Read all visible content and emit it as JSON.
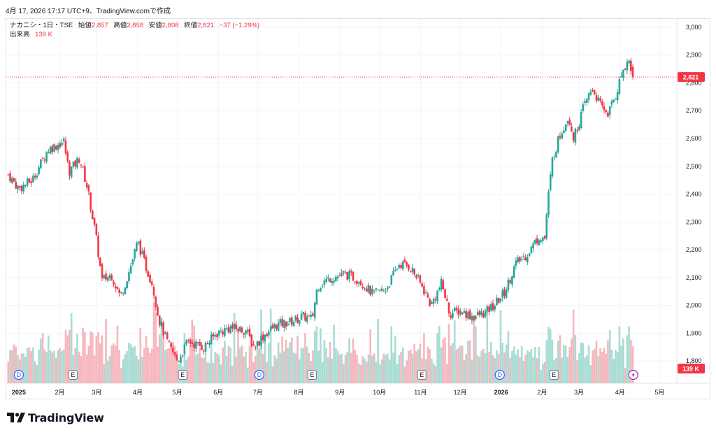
{
  "caption": "4月 17, 2026 17:17 UTC+9、TradingView.comで作成",
  "legend": {
    "symbol": "ナカニシ・1日・TSE",
    "open_label": "始値",
    "open_value": "2,857",
    "high_label": "高値",
    "high_value": "2,858",
    "low_label": "安値",
    "low_value": "2,808",
    "close_label": "終値",
    "close_value": "2,821",
    "change": "−37 (−1.29%)",
    "volume_label": "出来高",
    "volume_value": "139 K"
  },
  "price_badge": "2,821",
  "volume_badge": "139 K",
  "logo_text": "TradingView",
  "colors": {
    "up": "#26a69a",
    "down": "#f23645",
    "up_volume": "#a8dcd4",
    "down_volume": "#f5b7bd",
    "grid": "#f0f3fa",
    "event_E": "#787b86",
    "event_D": "#2962ff",
    "event_flash": "#9c27b0"
  },
  "chart_data": {
    "type": "candlestick",
    "title": "ナカニシ・1日・TSE",
    "ylim": [
      1720,
      3030
    ],
    "y_ticks": [
      1800,
      1900,
      2000,
      2100,
      2200,
      2300,
      2400,
      2500,
      2600,
      2700,
      2800,
      2900,
      3000
    ],
    "y_tick_labels": [
      "1,800",
      "1,900",
      "2,000",
      "2,100",
      "2,200",
      "2,300",
      "2,400",
      "2,500",
      "2,600",
      "2,700",
      "2,800",
      "2,900",
      "3,000"
    ],
    "x_range_days": [
      -10,
      498
    ],
    "x_ticks": [
      {
        "label": "2025",
        "day": 0,
        "bold": true
      },
      {
        "label": "2月",
        "day": 31
      },
      {
        "label": "3月",
        "day": 59
      },
      {
        "label": "4月",
        "day": 90
      },
      {
        "label": "5月",
        "day": 120
      },
      {
        "label": "6月",
        "day": 151
      },
      {
        "label": "7月",
        "day": 181
      },
      {
        "label": "8月",
        "day": 212
      },
      {
        "label": "9月",
        "day": 243
      },
      {
        "label": "10月",
        "day": 273
      },
      {
        "label": "11月",
        "day": 304
      },
      {
        "label": "12月",
        "day": 334
      },
      {
        "label": "2026",
        "day": 365,
        "bold": true
      },
      {
        "label": "2月",
        "day": 396
      },
      {
        "label": "3月",
        "day": 424
      },
      {
        "label": "4月",
        "day": 455
      },
      {
        "label": "5月",
        "day": 485
      }
    ],
    "price_anchors": [
      {
        "day": -8,
        "price": 2470
      },
      {
        "day": 0,
        "price": 2420
      },
      {
        "day": 10,
        "price": 2450
      },
      {
        "day": 22,
        "price": 2560
      },
      {
        "day": 34,
        "price": 2590
      },
      {
        "day": 38,
        "price": 2480
      },
      {
        "day": 46,
        "price": 2530
      },
      {
        "day": 52,
        "price": 2420
      },
      {
        "day": 58,
        "price": 2260
      },
      {
        "day": 63,
        "price": 2090
      },
      {
        "day": 70,
        "price": 2110
      },
      {
        "day": 77,
        "price": 2030
      },
      {
        "day": 84,
        "price": 2130
      },
      {
        "day": 90,
        "price": 2230
      },
      {
        "day": 96,
        "price": 2140
      },
      {
        "day": 101,
        "price": 2080
      },
      {
        "day": 106,
        "price": 1950
      },
      {
        "day": 113,
        "price": 1860
      },
      {
        "day": 120,
        "price": 1800
      },
      {
        "day": 128,
        "price": 1870
      },
      {
        "day": 140,
        "price": 1850
      },
      {
        "day": 150,
        "price": 1900
      },
      {
        "day": 160,
        "price": 1920
      },
      {
        "day": 172,
        "price": 1910
      },
      {
        "day": 178,
        "price": 1850
      },
      {
        "day": 185,
        "price": 1890
      },
      {
        "day": 195,
        "price": 1930
      },
      {
        "day": 205,
        "price": 1940
      },
      {
        "day": 215,
        "price": 1960
      },
      {
        "day": 222,
        "price": 1950
      },
      {
        "day": 226,
        "price": 2070
      },
      {
        "day": 236,
        "price": 2100
      },
      {
        "day": 248,
        "price": 2110
      },
      {
        "day": 258,
        "price": 2090
      },
      {
        "day": 268,
        "price": 2040
      },
      {
        "day": 278,
        "price": 2060
      },
      {
        "day": 288,
        "price": 2150
      },
      {
        "day": 296,
        "price": 2140
      },
      {
        "day": 300,
        "price": 2110
      },
      {
        "day": 306,
        "price": 2060
      },
      {
        "day": 312,
        "price": 2000
      },
      {
        "day": 320,
        "price": 2080
      },
      {
        "day": 326,
        "price": 1970
      },
      {
        "day": 334,
        "price": 1980
      },
      {
        "day": 344,
        "price": 1960
      },
      {
        "day": 352,
        "price": 1970
      },
      {
        "day": 360,
        "price": 2000
      },
      {
        "day": 368,
        "price": 2050
      },
      {
        "day": 376,
        "price": 2150
      },
      {
        "day": 384,
        "price": 2180
      },
      {
        "day": 394,
        "price": 2250
      },
      {
        "day": 398,
        "price": 2240
      },
      {
        "day": 400,
        "price": 2360
      },
      {
        "day": 404,
        "price": 2530
      },
      {
        "day": 410,
        "price": 2620
      },
      {
        "day": 416,
        "price": 2680
      },
      {
        "day": 420,
        "price": 2600
      },
      {
        "day": 428,
        "price": 2720
      },
      {
        "day": 434,
        "price": 2780
      },
      {
        "day": 440,
        "price": 2720
      },
      {
        "day": 446,
        "price": 2690
      },
      {
        "day": 452,
        "price": 2760
      },
      {
        "day": 458,
        "price": 2860
      },
      {
        "day": 462,
        "price": 2880
      },
      {
        "day": 465,
        "price": 2821
      }
    ],
    "last_price": 2821,
    "last_volume": "139 K",
    "events": [
      {
        "type": "D",
        "day": 0
      },
      {
        "type": "E",
        "day": 41
      },
      {
        "type": "E",
        "day": 124
      },
      {
        "type": "D",
        "day": 182
      },
      {
        "type": "E",
        "day": 222
      },
      {
        "type": "E",
        "day": 305
      },
      {
        "type": "D",
        "day": 364
      },
      {
        "type": "E",
        "day": 405
      },
      {
        "type": "flash",
        "day": 465
      }
    ]
  }
}
